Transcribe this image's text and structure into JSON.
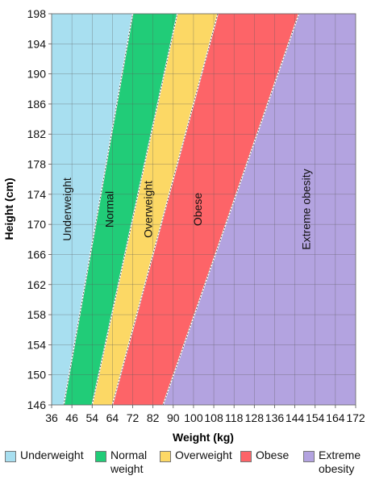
{
  "chart_data": {
    "type": "area",
    "xlabel": "Weight (kg)",
    "ylabel": "Height (cm)",
    "x_ticks": [
      36,
      46,
      54,
      64,
      72,
      82,
      90,
      100,
      108,
      118,
      128,
      136,
      144,
      154,
      164,
      172
    ],
    "y_ticks": [
      146,
      150,
      154,
      158,
      162,
      166,
      170,
      174,
      178,
      182,
      186,
      190,
      194,
      198
    ],
    "xlim": [
      36,
      172
    ],
    "ylim": [
      146,
      198
    ],
    "grid": true,
    "legend_position": "bottom",
    "boundaries": [
      {
        "between": [
          "Underweight",
          "Normal"
        ],
        "points": [
          [
            42,
            146
          ],
          [
            72,
            198
          ]
        ]
      },
      {
        "between": [
          "Normal",
          "Overweight"
        ],
        "points": [
          [
            54,
            146
          ],
          [
            92,
            198
          ]
        ]
      },
      {
        "between": [
          "Overweight",
          "Obese"
        ],
        "points": [
          [
            64,
            146
          ],
          [
            110,
            198
          ]
        ]
      },
      {
        "between": [
          "Obese",
          "Extreme obesity"
        ],
        "points": [
          [
            86,
            146
          ],
          [
            146,
            198
          ]
        ]
      }
    ],
    "series": [
      {
        "name": "Underweight",
        "color": "#a8dff0",
        "label_x": 44,
        "label_y": 172
      },
      {
        "name": "Normal",
        "color": "#21cc78",
        "label_x": 63,
        "label_y": 172
      },
      {
        "name": "Overweight",
        "color": "#fcd865",
        "label_x": 80,
        "label_y": 172
      },
      {
        "name": "Obese",
        "color": "#fd6468",
        "label_x": 102,
        "label_y": 172
      },
      {
        "name": "Extreme obesity",
        "color": "#b3a3e0",
        "label_x": 150,
        "label_y": 172
      }
    ]
  },
  "legend": [
    {
      "label": "Underweight",
      "color": "#a8dff0"
    },
    {
      "label": "Normal\nweight",
      "color": "#21cc78"
    },
    {
      "label": "Overweight",
      "color": "#fcd865"
    },
    {
      "label": "Obese",
      "color": "#fd6468"
    },
    {
      "label": "Extreme\nobesity",
      "color": "#b3a3e0"
    }
  ]
}
